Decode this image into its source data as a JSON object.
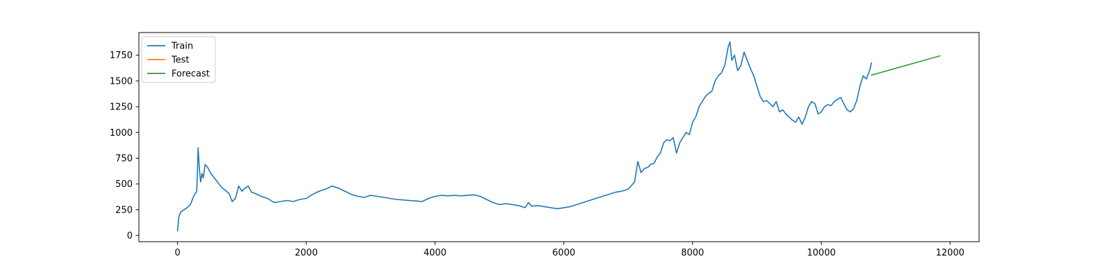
{
  "chart_data": {
    "type": "line",
    "title": "",
    "xlabel": "",
    "ylabel": "",
    "xlim": [
      -600,
      12450
    ],
    "ylim": [
      -60,
      1970
    ],
    "xticks": [
      0,
      2000,
      4000,
      6000,
      8000,
      10000,
      12000
    ],
    "xtick_labels": [
      "0",
      "2000",
      "4000",
      "6000",
      "8000",
      "10000",
      "12000"
    ],
    "yticks": [
      0,
      250,
      500,
      750,
      1000,
      1250,
      1500,
      1750
    ],
    "ytick_labels": [
      "0",
      "250",
      "500",
      "750",
      "1000",
      "1250",
      "1500",
      "1750"
    ],
    "grid": false,
    "legend_position": "top-left",
    "legend": [
      "Train",
      "Test",
      "Forecast"
    ],
    "series": [
      {
        "name": "Train",
        "color": "#1f77b4",
        "x": [
          0,
          20,
          50,
          100,
          150,
          200,
          250,
          300,
          320,
          340,
          360,
          380,
          400,
          430,
          470,
          520,
          570,
          620,
          680,
          740,
          800,
          850,
          900,
          950,
          1000,
          1050,
          1100,
          1150,
          1200,
          1300,
          1400,
          1500,
          1600,
          1700,
          1800,
          1900,
          2000,
          2100,
          2200,
          2300,
          2400,
          2500,
          2600,
          2700,
          2800,
          2900,
          3000,
          3100,
          3200,
          3300,
          3400,
          3500,
          3600,
          3700,
          3800,
          3900,
          4000,
          4100,
          4200,
          4300,
          4400,
          4500,
          4600,
          4700,
          4800,
          4900,
          5000,
          5100,
          5200,
          5300,
          5400,
          5450,
          5500,
          5600,
          5700,
          5800,
          5900,
          6000,
          6100,
          6200,
          6300,
          6400,
          6500,
          6600,
          6700,
          6800,
          6900,
          7000,
          7100,
          7150,
          7200,
          7250,
          7300,
          7350,
          7400,
          7450,
          7500,
          7550,
          7600,
          7650,
          7700,
          7750,
          7800,
          7850,
          7900,
          7950,
          8000,
          8050,
          8100,
          8150,
          8200,
          8250,
          8300,
          8350,
          8400,
          8450,
          8500,
          8550,
          8580,
          8610,
          8650,
          8700,
          8750,
          8800,
          8850,
          8900,
          8950,
          9000,
          9050,
          9100,
          9150,
          9200,
          9250,
          9300,
          9350,
          9400,
          9450,
          9500,
          9550,
          9600,
          9650,
          9700,
          9750,
          9800,
          9850,
          9900,
          9950,
          10000,
          10050,
          10100,
          10150,
          10200,
          10250,
          10300,
          10350,
          10400,
          10450,
          10500,
          10550,
          10600,
          10650,
          10700,
          10750,
          10780
        ],
        "y": [
          40,
          180,
          230,
          250,
          270,
          300,
          380,
          430,
          850,
          640,
          520,
          600,
          560,
          690,
          660,
          600,
          560,
          520,
          470,
          440,
          410,
          330,
          360,
          480,
          430,
          460,
          480,
          420,
          410,
          380,
          360,
          320,
          330,
          340,
          330,
          350,
          360,
          400,
          430,
          450,
          480,
          460,
          430,
          400,
          380,
          370,
          390,
          380,
          370,
          360,
          350,
          345,
          340,
          335,
          330,
          360,
          380,
          390,
          385,
          390,
          385,
          390,
          395,
          380,
          350,
          320,
          300,
          310,
          300,
          290,
          270,
          320,
          285,
          290,
          280,
          270,
          260,
          270,
          280,
          300,
          320,
          340,
          360,
          380,
          400,
          420,
          430,
          450,
          520,
          720,
          610,
          650,
          660,
          690,
          700,
          760,
          800,
          900,
          930,
          920,
          950,
          800,
          900,
          950,
          1000,
          980,
          1100,
          1150,
          1250,
          1300,
          1350,
          1380,
          1400,
          1500,
          1550,
          1580,
          1650,
          1820,
          1880,
          1700,
          1750,
          1600,
          1650,
          1780,
          1700,
          1620,
          1550,
          1450,
          1350,
          1300,
          1310,
          1280,
          1250,
          1300,
          1200,
          1220,
          1180,
          1150,
          1120,
          1100,
          1150,
          1080,
          1150,
          1250,
          1300,
          1280,
          1180,
          1200,
          1250,
          1270,
          1260,
          1300,
          1320,
          1340,
          1280,
          1220,
          1200,
          1230,
          1310,
          1450,
          1550,
          1520,
          1600,
          1680
        ]
      },
      {
        "name": "Test",
        "color": "#ff7f0e",
        "x": [],
        "y": []
      },
      {
        "name": "Forecast",
        "color": "#2ca02c",
        "x": [
          10770,
          11850
        ],
        "y": [
          1555,
          1745
        ]
      }
    ]
  }
}
